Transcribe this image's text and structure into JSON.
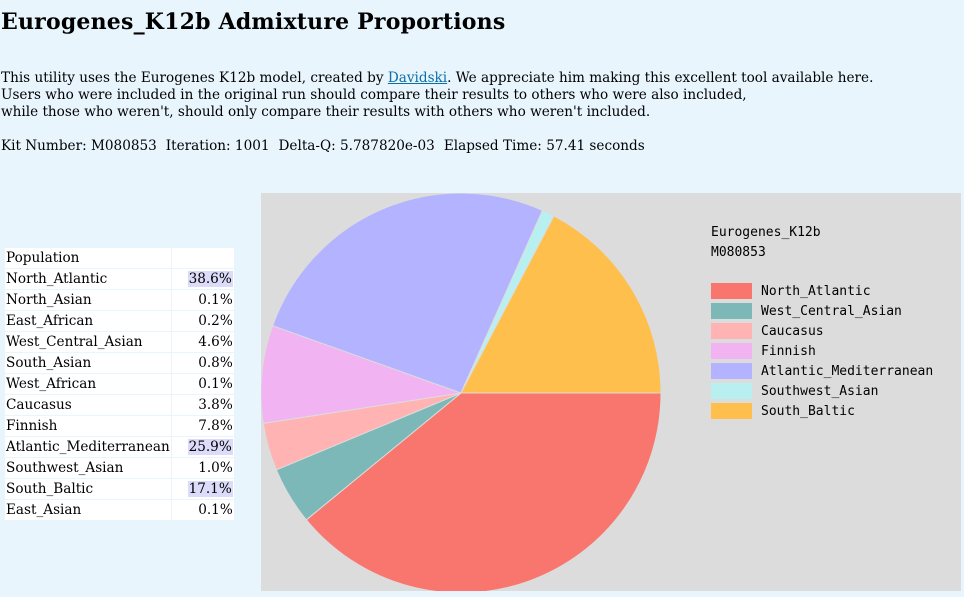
{
  "page": {
    "title": "Eurogenes_K12b Admixture Proportions",
    "intro_line1_a": "This utility uses the Eurogenes K12b model, created by ",
    "intro_link": "Davidski",
    "intro_line1_b": ". We appreciate him making this excellent tool available here.",
    "intro_line2": "Users who were included in the original run should compare their results to others who were also included,",
    "intro_line3": "while those who weren't, should only compare their results with others who weren't included."
  },
  "meta": {
    "kit": "Kit Number: M080853",
    "iteration": "Iteration: 1001",
    "delta_q": "Delta-Q: 5.787820e-03",
    "elapsed": "Elapsed Time: 57.41 seconds"
  },
  "table": {
    "header": "Population",
    "rows": [
      {
        "name": "North_Atlantic",
        "value": "38.6%",
        "highlight": true
      },
      {
        "name": "North_Asian",
        "value": "0.1%",
        "highlight": false
      },
      {
        "name": "East_African",
        "value": "0.2%",
        "highlight": false
      },
      {
        "name": "West_Central_Asian",
        "value": "4.6%",
        "highlight": false
      },
      {
        "name": "South_Asian",
        "value": "0.8%",
        "highlight": false
      },
      {
        "name": "West_African",
        "value": "0.1%",
        "highlight": false
      },
      {
        "name": "Caucasus",
        "value": "3.8%",
        "highlight": false
      },
      {
        "name": "Finnish",
        "value": "7.8%",
        "highlight": false
      },
      {
        "name": "Atlantic_Mediterranean",
        "value": "25.9%",
        "highlight": true
      },
      {
        "name": "Southwest_Asian",
        "value": "1.0%",
        "highlight": false
      },
      {
        "name": "South_Baltic",
        "value": "17.1%",
        "highlight": true
      },
      {
        "name": "East_Asian",
        "value": "0.1%",
        "highlight": false
      }
    ]
  },
  "chart_data": {
    "type": "pie",
    "title": "Eurogenes_K12b",
    "subtitle": "M080853",
    "background": "#dcdcdc",
    "slices": [
      {
        "name": "North_Atlantic",
        "value": 38.6,
        "color": "#f8766d"
      },
      {
        "name": "West_Central_Asian",
        "value": 4.6,
        "color": "#7cb8b8"
      },
      {
        "name": "Caucasus",
        "value": 3.8,
        "color": "#ffb3b3"
      },
      {
        "name": "Finnish",
        "value": 7.8,
        "color": "#f2b3f2"
      },
      {
        "name": "Atlantic_Mediterranean",
        "value": 25.9,
        "color": "#b3b3ff"
      },
      {
        "name": "Southwest_Asian",
        "value": 1.0,
        "color": "#b8f0f2"
      },
      {
        "name": "South_Baltic",
        "value": 17.1,
        "color": "#ffbf4d"
      }
    ],
    "legend": "right"
  }
}
